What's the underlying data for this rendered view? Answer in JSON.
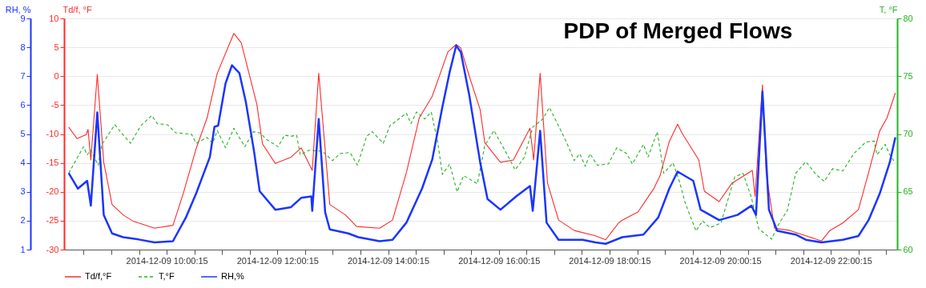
{
  "chart_data": {
    "type": "line",
    "title": "PDP of Merged Flows",
    "ylabel": "Td/f, °F",
    "y2label": "T, °F",
    "y3label": "RH, %",
    "xlim": [
      "2014-12-09T08:09",
      "2014-12-09T23:12"
    ],
    "xticks": [
      {
        "value": "2014-12-09T08:30:15",
        "label": null
      },
      {
        "value": "2014-12-09T09:00:15",
        "label": null
      },
      {
        "value": "2014-12-09T09:30:15",
        "label": null
      },
      {
        "value": "2014-12-09T10:00:15",
        "label": "2014-12-09 10:00:15"
      },
      {
        "value": "2014-12-09T10:30:15",
        "label": null
      },
      {
        "value": "2014-12-09T11:00:15",
        "label": null
      },
      {
        "value": "2014-12-09T11:30:15",
        "label": null
      },
      {
        "value": "2014-12-09T12:00:15",
        "label": "2014-12-09 12:00:15"
      },
      {
        "value": "2014-12-09T12:30:15",
        "label": null
      },
      {
        "value": "2014-12-09T13:00:15",
        "label": null
      },
      {
        "value": "2014-12-09T13:30:15",
        "label": null
      },
      {
        "value": "2014-12-09T14:00:15",
        "label": "2014-12-09 14:00:15"
      },
      {
        "value": "2014-12-09T14:30:15",
        "label": null
      },
      {
        "value": "2014-12-09T15:00:15",
        "label": null
      },
      {
        "value": "2014-12-09T15:30:15",
        "label": null
      },
      {
        "value": "2014-12-09T16:00:15",
        "label": "2014-12-09 16:00:15"
      },
      {
        "value": "2014-12-09T16:30:15",
        "label": null
      },
      {
        "value": "2014-12-09T17:00:15",
        "label": null
      },
      {
        "value": "2014-12-09T17:30:15",
        "label": null
      },
      {
        "value": "2014-12-09T18:00:15",
        "label": "2014-12-09 18:00:15"
      },
      {
        "value": "2014-12-09T18:30:15",
        "label": null
      },
      {
        "value": "2014-12-09T19:00:15",
        "label": null
      },
      {
        "value": "2014-12-09T19:30:15",
        "label": null
      },
      {
        "value": "2014-12-09T20:00:15",
        "label": "2014-12-09 20:00:15"
      },
      {
        "value": "2014-12-09T20:30:15",
        "label": null
      },
      {
        "value": "2014-12-09T21:00:15",
        "label": null
      },
      {
        "value": "2014-12-09T21:30:15",
        "label": null
      },
      {
        "value": "2014-12-09T22:00:15",
        "label": "2014-12-09 22:00:15"
      },
      {
        "value": "2014-12-09T22:30:15",
        "label": null
      },
      {
        "value": "2014-12-09T23:00:15",
        "label": null
      }
    ],
    "ylim": [
      -30,
      10
    ],
    "yticks": [
      -30,
      -25,
      -20,
      -15,
      -10,
      -5,
      0,
      5,
      10
    ],
    "y2lim": [
      60,
      80
    ],
    "y2ticks": [
      60,
      65,
      70,
      75,
      80
    ],
    "y3lim": [
      1,
      9
    ],
    "y3ticks": [
      1,
      2,
      3,
      4,
      5,
      6,
      7,
      8,
      9
    ],
    "grid": true,
    "legend": "bottom",
    "line_style": "solid",
    "series": [
      {
        "name": "Td/f,°F",
        "color": "#ff2a2a",
        "x": [
          "2014-12-09T08:14",
          "2014-12-09T08:23",
          "2014-12-09T08:33",
          "2014-12-09T08:35",
          "2014-12-09T08:38",
          "2014-12-09T08:45",
          "2014-12-09T08:52",
          "2014-12-09T09:01",
          "2014-12-09T09:13",
          "2014-12-09T09:24",
          "2014-12-09T09:47",
          "2014-12-09T10:07",
          "2014-12-09T10:18",
          "2014-12-09T10:32",
          "2014-12-09T10:44",
          "2014-12-09T10:55",
          "2014-12-09T11:13",
          "2014-12-09T11:21",
          "2014-12-09T11:38",
          "2014-12-09T11:44",
          "2014-12-09T11:58",
          "2014-12-09T12:15",
          "2014-12-09T12:26",
          "2014-12-09T12:38",
          "2014-12-09T12:45",
          "2014-12-09T12:57",
          "2014-12-09T13:14",
          "2014-12-09T13:26",
          "2014-12-09T13:51",
          "2014-12-09T14:05",
          "2014-12-09T14:20",
          "2014-12-09T14:34",
          "2014-12-09T14:48",
          "2014-12-09T15:05",
          "2014-12-09T15:14",
          "2014-12-09T15:19",
          "2014-12-09T15:28",
          "2014-12-09T15:40",
          "2014-12-09T15:45",
          "2014-12-09T16:02",
          "2014-12-09T16:16",
          "2014-12-09T16:34",
          "2014-12-09T16:38",
          "2014-12-09T16:45",
          "2014-12-09T16:53",
          "2014-12-09T17:05",
          "2014-12-09T17:22",
          "2014-12-09T17:45",
          "2014-12-09T17:56",
          "2014-12-09T18:10",
          "2014-12-09T18:14",
          "2014-12-09T18:31",
          "2014-12-09T18:48",
          "2014-12-09T18:55",
          "2014-12-09T19:05",
          "2014-12-09T19:14",
          "2014-12-09T19:19",
          "2014-12-09T19:37",
          "2014-12-09T19:43",
          "2014-12-09T19:59",
          "2014-12-09T20:13",
          "2014-12-09T20:35",
          "2014-12-09T20:38",
          "2014-12-09T20:46",
          "2014-12-09T20:50",
          "2014-12-09T20:59",
          "2014-12-09T21:16",
          "2014-12-09T21:33",
          "2014-12-09T21:50",
          "2014-12-09T21:59",
          "2014-12-09T22:13",
          "2014-12-09T22:30",
          "2014-12-09T22:41",
          "2014-12-09T22:53",
          "2014-12-09T23:01",
          "2014-12-09T23:10"
        ],
        "values": [
          -8.8,
          -10.8,
          -10.1,
          -9.2,
          -14.5,
          0.3,
          -14.9,
          -22.2,
          -24.0,
          -25.1,
          -26.3,
          -25.8,
          -20.4,
          -12.6,
          -7.2,
          0.5,
          7.4,
          5.8,
          -4.9,
          -11.7,
          -15.1,
          -14.0,
          -12.4,
          -16.3,
          0.5,
          -22.2,
          -24.0,
          -26.0,
          -26.3,
          -24.9,
          -16.7,
          -7.2,
          -3.5,
          4.2,
          5.5,
          4.9,
          0.1,
          -5.8,
          -11.5,
          -14.9,
          -14.5,
          -9.0,
          -14.5,
          0.5,
          -18.5,
          -24.9,
          -26.7,
          -27.6,
          -28.3,
          -25.4,
          -24.9,
          -23.5,
          -19.5,
          -17.2,
          -11.3,
          -8.3,
          -9.9,
          -14.5,
          -19.9,
          -21.7,
          -18.5,
          -16.3,
          -20.8,
          -1.5,
          -16.7,
          -26.3,
          -26.7,
          -27.6,
          -28.5,
          -26.7,
          -25.4,
          -23.1,
          -16.7,
          -9.5,
          -7.2,
          -2.9
        ]
      },
      {
        "name": "T,°F",
        "color": "#22b422",
        "axis": "y2",
        "line_style": "dashed",
        "x": [
          "2014-12-09T08:14",
          "2014-12-09T08:30",
          "2014-12-09T08:34",
          "2014-12-09T08:38",
          "2014-12-09T08:46",
          "2014-12-09T08:50",
          "2014-12-09T09:04",
          "2014-12-09T09:10",
          "2014-12-09T09:21",
          "2014-12-09T09:32",
          "2014-12-09T09:44",
          "2014-12-09T09:50",
          "2014-12-09T10:01",
          "2014-12-09T10:10",
          "2014-12-09T10:27",
          "2014-12-09T10:32",
          "2014-12-09T10:44",
          "2014-12-09T10:50",
          "2014-12-09T10:55",
          "2014-12-09T11:04",
          "2014-12-09T11:13",
          "2014-12-09T11:25",
          "2014-12-09T11:34",
          "2014-12-09T11:41",
          "2014-12-09T11:49",
          "2014-12-09T12:01",
          "2014-12-09T12:08",
          "2014-12-09T12:15",
          "2014-12-09T12:21",
          "2014-12-09T12:25",
          "2014-12-09T12:35",
          "2014-12-09T12:49",
          "2014-12-09T13:00",
          "2014-12-09T13:08",
          "2014-12-09T13:19",
          "2014-12-09T13:27",
          "2014-12-09T13:37",
          "2014-12-09T13:43",
          "2014-12-09T13:55",
          "2014-12-09T14:02",
          "2014-12-09T14:20",
          "2014-12-09T14:25",
          "2014-12-09T14:31",
          "2014-12-09T14:40",
          "2014-12-09T14:47",
          "2014-12-09T14:54",
          "2014-12-09T14:59",
          "2014-12-09T15:07",
          "2014-12-09T15:15",
          "2014-12-09T15:22",
          "2014-12-09T15:37",
          "2014-12-09T15:45",
          "2014-12-09T15:55",
          "2014-12-09T16:08",
          "2014-12-09T16:18",
          "2014-12-09T16:28",
          "2014-12-09T16:37",
          "2014-12-09T16:48",
          "2014-12-09T16:55",
          "2014-12-09T17:05",
          "2014-12-09T17:13",
          "2014-12-09T17:22",
          "2014-12-09T17:28",
          "2014-12-09T17:34",
          "2014-12-09T17:39",
          "2014-12-09T17:47",
          "2014-12-09T17:59",
          "2014-12-09T18:08",
          "2014-12-09T18:19",
          "2014-12-09T18:25",
          "2014-12-09T18:37",
          "2014-12-09T18:42",
          "2014-12-09T18:52",
          "2014-12-09T18:59",
          "2014-12-09T19:09",
          "2014-12-09T19:16",
          "2014-12-09T19:22",
          "2014-12-09T19:34",
          "2014-12-09T19:41",
          "2014-12-09T19:49",
          "2014-12-09T20:01",
          "2014-12-09T20:16",
          "2014-12-09T20:25",
          "2014-12-09T20:34",
          "2014-12-09T20:42",
          "2014-12-09T20:56",
          "2014-12-09T21:02",
          "2014-12-09T21:13",
          "2014-12-09T21:22",
          "2014-12-09T21:33",
          "2014-12-09T21:44",
          "2014-12-09T21:53",
          "2014-12-09T22:02",
          "2014-12-09T22:13",
          "2014-12-09T22:25",
          "2014-12-09T22:38",
          "2014-12-09T22:47",
          "2014-12-09T22:50",
          "2014-12-09T22:59",
          "2014-12-09T23:04",
          "2014-12-09T23:10"
        ],
        "values": [
          66.6,
          68.9,
          68.2,
          68.6,
          67.3,
          69.1,
          70.8,
          70.2,
          69.2,
          70.7,
          71.6,
          70.9,
          70.8,
          70.1,
          70.0,
          69.2,
          69.7,
          69.2,
          70.3,
          68.8,
          70.5,
          68.9,
          70.2,
          70.1,
          69.5,
          68.9,
          69.9,
          69.8,
          69.9,
          68.2,
          68.6,
          68.5,
          67.7,
          68.3,
          68.4,
          67.3,
          69.8,
          70.2,
          69.2,
          70.7,
          71.8,
          70.9,
          71.9,
          71.3,
          71.9,
          69.3,
          66.5,
          67.4,
          65.0,
          66.4,
          65.7,
          69.0,
          70.3,
          68.4,
          66.9,
          68.0,
          70.6,
          71.3,
          72.3,
          70.7,
          69.4,
          67.7,
          68.3,
          67.2,
          68.3,
          67.3,
          67.4,
          68.8,
          68.3,
          67.4,
          69.1,
          68.0,
          70.2,
          66.6,
          67.5,
          65.9,
          64.1,
          61.6,
          62.5,
          61.9,
          62.3,
          66.3,
          66.6,
          64.5,
          61.8,
          60.9,
          62.0,
          63.4,
          66.6,
          67.6,
          66.5,
          65.9,
          67.0,
          66.8,
          68.3,
          69.3,
          69.4,
          68.2,
          69.1,
          68.2,
          67.5
        ]
      },
      {
        "name": "RH,%",
        "color": "#1a35ff",
        "axis": "y3",
        "x": [
          "2014-12-09T08:14",
          "2014-12-09T08:24",
          "2014-12-09T08:34",
          "2014-12-09T08:38",
          "2014-12-09T08:45",
          "2014-12-09T08:52",
          "2014-12-09T09:01",
          "2014-12-09T09:13",
          "2014-12-09T09:30",
          "2014-12-09T09:47",
          "2014-12-09T10:07",
          "2014-12-09T10:21",
          "2014-12-09T10:32",
          "2014-12-09T10:47",
          "2014-12-09T10:52",
          "2014-12-09T10:56",
          "2014-12-09T11:04",
          "2014-12-09T11:11",
          "2014-12-09T11:19",
          "2014-12-09T11:26",
          "2014-12-09T11:35",
          "2014-12-09T11:41",
          "2014-12-09T11:58",
          "2014-12-09T12:15",
          "2014-12-09T12:26",
          "2014-12-09T12:37",
          "2014-12-09T12:38",
          "2014-12-09T12:45",
          "2014-12-09T12:52",
          "2014-12-09T12:57",
          "2014-12-09T13:17",
          "2014-12-09T13:28",
          "2014-12-09T13:51",
          "2014-12-09T14:05",
          "2014-12-09T14:20",
          "2014-12-09T14:37",
          "2014-12-09T14:48",
          "2014-12-09T14:59",
          "2014-12-09T15:07",
          "2014-12-09T15:14",
          "2014-12-09T15:19",
          "2014-12-09T15:28",
          "2014-12-09T15:40",
          "2014-12-09T15:48",
          "2014-12-09T16:02",
          "2014-12-09T16:19",
          "2014-12-09T16:34",
          "2014-12-09T16:37",
          "2014-12-09T16:45",
          "2014-12-09T16:52",
          "2014-12-09T17:05",
          "2014-12-09T17:31",
          "2014-12-09T17:45",
          "2014-12-09T17:56",
          "2014-12-09T18:14",
          "2014-12-09T18:37",
          "2014-12-09T18:53",
          "2014-12-09T19:05",
          "2014-12-09T19:14",
          "2014-12-09T19:31",
          "2014-12-09T19:39",
          "2014-12-09T19:59",
          "2014-12-09T20:19",
          "2014-12-09T20:34",
          "2014-12-09T20:39",
          "2014-12-09T20:46",
          "2014-12-09T20:53",
          "2014-12-09T21:02",
          "2014-12-09T21:22",
          "2014-12-09T21:33",
          "2014-12-09T21:50",
          "2014-12-09T22:13",
          "2014-12-09T22:30",
          "2014-12-09T22:41",
          "2014-12-09T22:53",
          "2014-12-09T23:04",
          "2014-12-09T23:10"
        ],
        "values": [
          3.65,
          3.11,
          3.38,
          2.52,
          5.75,
          2.2,
          1.56,
          1.43,
          1.35,
          1.25,
          1.29,
          2.11,
          2.93,
          4.2,
          5.25,
          5.29,
          6.75,
          7.38,
          7.11,
          6.11,
          4.38,
          3.02,
          2.38,
          2.47,
          2.79,
          2.84,
          2.34,
          5.52,
          2.29,
          1.7,
          1.56,
          1.43,
          1.29,
          1.34,
          1.93,
          3.11,
          4.11,
          5.93,
          7.15,
          8.06,
          7.84,
          6.38,
          4.02,
          2.75,
          2.38,
          2.84,
          3.2,
          2.34,
          5.11,
          1.93,
          1.34,
          1.34,
          1.25,
          1.2,
          1.43,
          1.52,
          2.11,
          3.11,
          3.7,
          3.38,
          2.38,
          2.02,
          2.2,
          2.52,
          2.2,
          6.47,
          2.38,
          1.65,
          1.52,
          1.34,
          1.25,
          1.34,
          1.47,
          2.02,
          2.93,
          4.02,
          4.88
        ]
      }
    ]
  }
}
